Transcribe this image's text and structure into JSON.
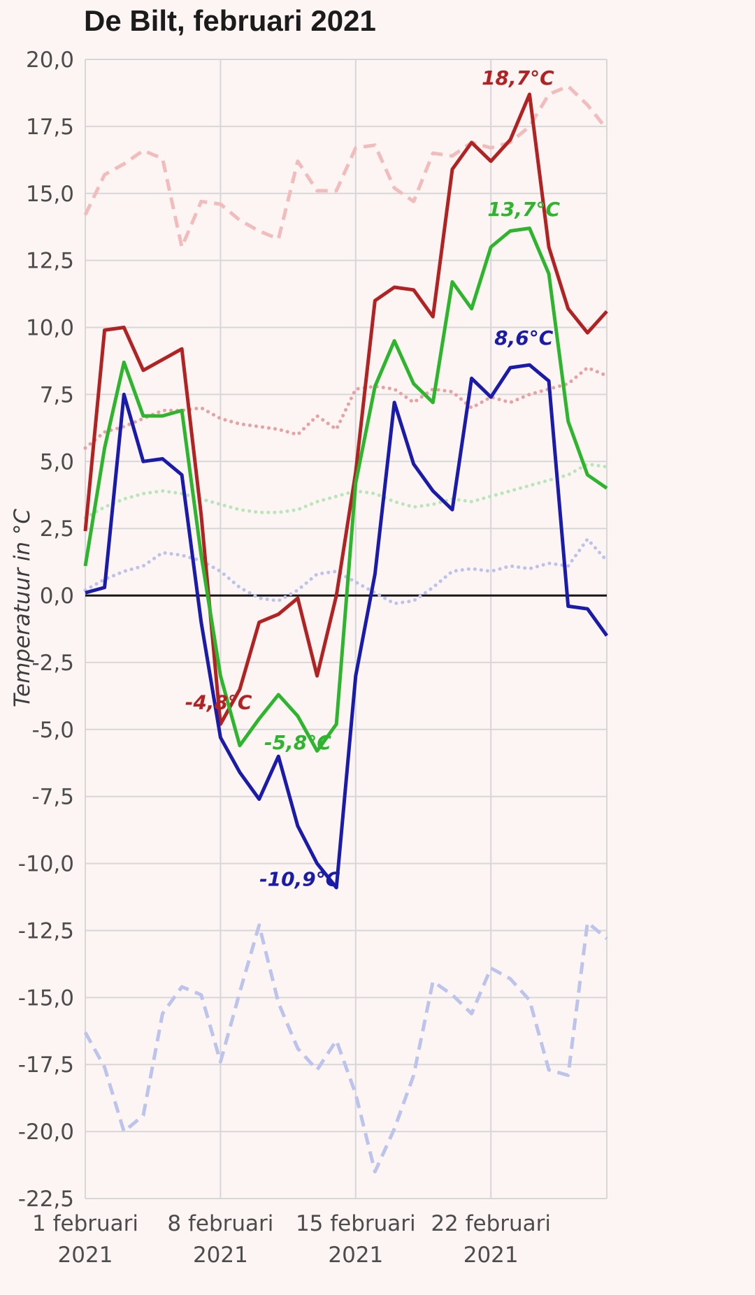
{
  "chart_data": {
    "type": "line",
    "title": "De Bilt, februari 2021",
    "ylabel": "Temperatuur in °C",
    "xlabel": "",
    "ylim": [
      -22.5,
      20.0
    ],
    "ytick_step": 2.5,
    "grid": true,
    "zero_line": true,
    "legend": "none",
    "ytick_values": [
      20.0,
      17.5,
      15.0,
      12.5,
      10.0,
      7.5,
      5.0,
      2.5,
      0.0,
      -2.5,
      -5.0,
      -7.5,
      -10.0,
      -12.5,
      -15.0,
      -17.5,
      -20.0,
      -22.5
    ],
    "ytick_labels": [
      "20,0",
      "17,5",
      "15,0",
      "12,5",
      "10,0",
      "7,5",
      "5,0",
      "2,5",
      "0,0",
      "-2,5",
      "-5,0",
      "-7,5",
      "-10,0",
      "-12,5",
      "-15,0",
      "-17,5",
      "-20,0",
      "-22,5"
    ],
    "xticks": [
      {
        "day": 1,
        "label_line1": "1 februari",
        "label_line2": "2021"
      },
      {
        "day": 8,
        "label_line1": "8 februari",
        "label_line2": "2021"
      },
      {
        "day": 15,
        "label_line1": "15 februari",
        "label_line2": "2021"
      },
      {
        "day": 22,
        "label_line1": "22 februari",
        "label_line2": "2021"
      }
    ],
    "series": [
      {
        "name": "record_max",
        "style": "dashed",
        "color": "#f2bcbc",
        "values": [
          14.2,
          15.7,
          16.1,
          16.6,
          16.3,
          13.0,
          14.7,
          14.6,
          14.0,
          13.6,
          13.3,
          16.2,
          15.1,
          15.1,
          16.7,
          16.8,
          15.2,
          14.7,
          16.5,
          16.4,
          16.9,
          16.7,
          16.9,
          17.5,
          18.7,
          19.0,
          18.3,
          17.4
        ]
      },
      {
        "name": "normal_max",
        "style": "dotted",
        "color": "#e9a0a0",
        "values": [
          5.5,
          6.1,
          6.3,
          6.6,
          6.9,
          6.9,
          7.0,
          6.6,
          6.4,
          6.3,
          6.2,
          6.0,
          6.7,
          6.2,
          7.7,
          7.8,
          7.7,
          7.2,
          7.7,
          7.6,
          7.0,
          7.4,
          7.2,
          7.5,
          7.7,
          7.9,
          8.5,
          8.2
        ]
      },
      {
        "name": "normal_mean",
        "style": "dotted",
        "color": "#b9e6b9",
        "values": [
          2.9,
          3.3,
          3.6,
          3.8,
          3.9,
          3.8,
          3.6,
          3.4,
          3.2,
          3.1,
          3.1,
          3.2,
          3.5,
          3.7,
          3.9,
          3.8,
          3.5,
          3.3,
          3.4,
          3.6,
          3.5,
          3.7,
          3.9,
          4.1,
          4.3,
          4.5,
          4.9,
          4.8
        ]
      },
      {
        "name": "normal_min",
        "style": "dotted",
        "color": "#bcc2ea",
        "values": [
          0.2,
          0.6,
          0.9,
          1.1,
          1.6,
          1.5,
          1.3,
          0.9,
          0.3,
          -0.1,
          -0.2,
          0.2,
          0.8,
          0.9,
          0.5,
          0.1,
          -0.3,
          -0.2,
          0.3,
          0.9,
          1.0,
          0.9,
          1.1,
          1.0,
          1.2,
          1.1,
          2.1,
          1.3
        ]
      },
      {
        "name": "record_min",
        "style": "dashed",
        "color": "#bdc4ec",
        "values": [
          -16.3,
          -17.6,
          -20.0,
          -19.4,
          -15.6,
          -14.6,
          -14.9,
          -17.4,
          -14.8,
          -12.3,
          -15.2,
          -16.9,
          -17.7,
          -16.6,
          -18.6,
          -21.5,
          -19.9,
          -17.9,
          -14.4,
          -14.9,
          -15.6,
          -13.9,
          -14.3,
          -15.1,
          -17.7,
          -17.9,
          -12.2,
          -12.8
        ]
      },
      {
        "name": "max",
        "style": "solid",
        "color": "#b22222",
        "values": [
          2.4,
          9.9,
          10.0,
          8.4,
          8.8,
          9.2,
          3.0,
          -4.8,
          -3.5,
          -1.0,
          -0.7,
          -0.1,
          -3.0,
          0.0,
          4.6,
          11.0,
          11.5,
          11.4,
          10.4,
          15.9,
          16.9,
          16.2,
          17.0,
          18.7,
          13.0,
          10.7,
          9.8,
          10.6
        ]
      },
      {
        "name": "mean",
        "style": "solid",
        "color": "#2db52d",
        "values": [
          1.1,
          5.5,
          8.7,
          6.7,
          6.7,
          6.9,
          1.5,
          -3.0,
          -5.6,
          -4.6,
          -3.7,
          -4.5,
          -5.8,
          -4.8,
          4.2,
          7.8,
          9.5,
          7.9,
          7.2,
          11.7,
          10.7,
          13.0,
          13.6,
          13.7,
          12.0,
          6.5,
          4.5,
          4.0
        ]
      },
      {
        "name": "min",
        "style": "solid",
        "color": "#1a1aab",
        "values": [
          0.1,
          0.3,
          7.5,
          5.0,
          5.1,
          4.5,
          -1.0,
          -5.3,
          -6.6,
          -7.6,
          -6.0,
          -8.6,
          -10.0,
          -10.9,
          -3.0,
          0.8,
          7.2,
          4.9,
          3.9,
          3.2,
          8.1,
          7.4,
          8.5,
          8.6,
          8.0,
          -0.4,
          -0.5,
          -1.5
        ]
      }
    ],
    "annotations": [
      {
        "text": "18,7°C",
        "day": 23.4,
        "temp": 19.3,
        "color": "#b22222"
      },
      {
        "text": "13,7°C",
        "day": 23.7,
        "temp": 14.4,
        "color": "#2db52d"
      },
      {
        "text": "8,6°C",
        "day": 23.7,
        "temp": 9.6,
        "color": "#1a1aab"
      },
      {
        "text": "-4,8°C",
        "day": 7.9,
        "temp": -4.0,
        "color": "#b22222"
      },
      {
        "text": "-5,8°C",
        "day": 12.0,
        "temp": -5.5,
        "color": "#2db52d"
      },
      {
        "text": "-10,9°C",
        "day": 12.1,
        "temp": -10.6,
        "color": "#1a1aab"
      }
    ]
  }
}
